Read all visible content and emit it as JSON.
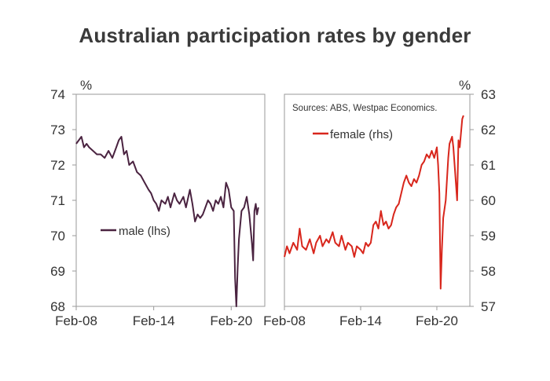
{
  "title": "Australian participation rates by gender",
  "chart_data": [
    {
      "type": "line",
      "panel": "left",
      "unit_label": "%",
      "y_axis_side": "left",
      "ylim": [
        68,
        74
      ],
      "yticks": [
        68,
        69,
        70,
        71,
        72,
        73,
        74
      ],
      "xlim": [
        2008.0,
        2022.6
      ],
      "xticks": [
        {
          "label": "Feb-08",
          "value": 2008.0
        },
        {
          "label": "Feb-14",
          "value": 2014.0
        },
        {
          "label": "Feb-20",
          "value": 2020.0
        }
      ],
      "legend_label": "male (lhs)",
      "legend_position": "middle-left",
      "series": [
        {
          "name": "male (lhs)",
          "color": "#4a2340",
          "points": [
            [
              2008.0,
              72.6
            ],
            [
              2008.2,
              72.7
            ],
            [
              2008.4,
              72.8
            ],
            [
              2008.6,
              72.5
            ],
            [
              2008.8,
              72.6
            ],
            [
              2009.0,
              72.5
            ],
            [
              2009.3,
              72.4
            ],
            [
              2009.6,
              72.3
            ],
            [
              2009.9,
              72.3
            ],
            [
              2010.2,
              72.2
            ],
            [
              2010.5,
              72.4
            ],
            [
              2010.8,
              72.2
            ],
            [
              2011.1,
              72.5
            ],
            [
              2011.3,
              72.7
            ],
            [
              2011.5,
              72.8
            ],
            [
              2011.7,
              72.3
            ],
            [
              2011.9,
              72.4
            ],
            [
              2012.1,
              72.0
            ],
            [
              2012.4,
              72.1
            ],
            [
              2012.7,
              71.8
            ],
            [
              2013.0,
              71.7
            ],
            [
              2013.3,
              71.5
            ],
            [
              2013.6,
              71.3
            ],
            [
              2013.8,
              71.2
            ],
            [
              2014.0,
              71.0
            ],
            [
              2014.2,
              70.9
            ],
            [
              2014.4,
              70.7
            ],
            [
              2014.6,
              71.0
            ],
            [
              2014.9,
              70.9
            ],
            [
              2015.1,
              71.1
            ],
            [
              2015.3,
              70.8
            ],
            [
              2015.6,
              71.2
            ],
            [
              2015.8,
              71.0
            ],
            [
              2016.0,
              70.9
            ],
            [
              2016.3,
              71.1
            ],
            [
              2016.5,
              70.8
            ],
            [
              2016.8,
              71.3
            ],
            [
              2017.0,
              70.9
            ],
            [
              2017.2,
              70.4
            ],
            [
              2017.4,
              70.6
            ],
            [
              2017.6,
              70.5
            ],
            [
              2017.8,
              70.6
            ],
            [
              2018.0,
              70.8
            ],
            [
              2018.2,
              71.0
            ],
            [
              2018.4,
              70.9
            ],
            [
              2018.6,
              70.7
            ],
            [
              2018.8,
              71.0
            ],
            [
              2019.0,
              70.9
            ],
            [
              2019.2,
              71.1
            ],
            [
              2019.4,
              70.8
            ],
            [
              2019.6,
              71.5
            ],
            [
              2019.8,
              71.3
            ],
            [
              2020.0,
              70.8
            ],
            [
              2020.2,
              70.7
            ],
            [
              2020.3,
              68.8
            ],
            [
              2020.4,
              68.0
            ],
            [
              2020.5,
              69.1
            ],
            [
              2020.6,
              69.9
            ],
            [
              2020.8,
              70.7
            ],
            [
              2021.0,
              70.8
            ],
            [
              2021.2,
              71.1
            ],
            [
              2021.4,
              70.6
            ],
            [
              2021.6,
              69.8
            ],
            [
              2021.7,
              69.3
            ],
            [
              2021.8,
              70.7
            ],
            [
              2021.9,
              70.9
            ],
            [
              2022.0,
              70.6
            ],
            [
              2022.1,
              70.8
            ]
          ]
        }
      ]
    },
    {
      "type": "line",
      "panel": "right",
      "unit_label": "%",
      "y_axis_side": "right",
      "ylim": [
        57,
        63
      ],
      "yticks": [
        57,
        58,
        59,
        60,
        61,
        62,
        63
      ],
      "xlim": [
        2008.0,
        2022.6
      ],
      "xticks": [
        {
          "label": "Feb-08",
          "value": 2008.0
        },
        {
          "label": "Feb-14",
          "value": 2014.0
        },
        {
          "label": "Feb-20",
          "value": 2020.0
        }
      ],
      "legend_label": "female (rhs)",
      "legend_position": "top-left",
      "source": "Sources: ABS, Westpac Economics.",
      "series": [
        {
          "name": "female (rhs)",
          "color": "#d8261c",
          "points": [
            [
              2008.0,
              58.4
            ],
            [
              2008.2,
              58.7
            ],
            [
              2008.4,
              58.5
            ],
            [
              2008.7,
              58.8
            ],
            [
              2009.0,
              58.6
            ],
            [
              2009.2,
              59.2
            ],
            [
              2009.4,
              58.7
            ],
            [
              2009.7,
              58.6
            ],
            [
              2010.0,
              58.9
            ],
            [
              2010.3,
              58.5
            ],
            [
              2010.5,
              58.8
            ],
            [
              2010.8,
              59.0
            ],
            [
              2011.0,
              58.7
            ],
            [
              2011.3,
              58.9
            ],
            [
              2011.5,
              58.8
            ],
            [
              2011.8,
              59.1
            ],
            [
              2012.0,
              58.8
            ],
            [
              2012.3,
              58.7
            ],
            [
              2012.5,
              59.0
            ],
            [
              2012.8,
              58.6
            ],
            [
              2013.0,
              58.8
            ],
            [
              2013.3,
              58.7
            ],
            [
              2013.5,
              58.4
            ],
            [
              2013.7,
              58.7
            ],
            [
              2014.0,
              58.6
            ],
            [
              2014.2,
              58.5
            ],
            [
              2014.4,
              58.8
            ],
            [
              2014.6,
              58.7
            ],
            [
              2014.8,
              58.8
            ],
            [
              2015.0,
              59.3
            ],
            [
              2015.2,
              59.4
            ],
            [
              2015.4,
              59.2
            ],
            [
              2015.6,
              59.7
            ],
            [
              2015.8,
              59.3
            ],
            [
              2016.0,
              59.4
            ],
            [
              2016.2,
              59.2
            ],
            [
              2016.4,
              59.3
            ],
            [
              2016.6,
              59.6
            ],
            [
              2016.8,
              59.8
            ],
            [
              2017.0,
              59.9
            ],
            [
              2017.2,
              60.2
            ],
            [
              2017.4,
              60.5
            ],
            [
              2017.6,
              60.7
            ],
            [
              2017.8,
              60.5
            ],
            [
              2018.0,
              60.4
            ],
            [
              2018.2,
              60.6
            ],
            [
              2018.4,
              60.5
            ],
            [
              2018.6,
              60.7
            ],
            [
              2018.8,
              61.0
            ],
            [
              2019.0,
              61.1
            ],
            [
              2019.2,
              61.3
            ],
            [
              2019.4,
              61.2
            ],
            [
              2019.6,
              61.4
            ],
            [
              2019.8,
              61.2
            ],
            [
              2020.0,
              61.5
            ],
            [
              2020.1,
              61.0
            ],
            [
              2020.2,
              60.2
            ],
            [
              2020.3,
              57.5
            ],
            [
              2020.4,
              58.6
            ],
            [
              2020.5,
              59.5
            ],
            [
              2020.7,
              60.0
            ],
            [
              2020.9,
              61.2
            ],
            [
              2021.0,
              61.6
            ],
            [
              2021.2,
              61.8
            ],
            [
              2021.3,
              61.5
            ],
            [
              2021.5,
              60.5
            ],
            [
              2021.6,
              60.0
            ],
            [
              2021.7,
              61.7
            ],
            [
              2021.8,
              61.5
            ],
            [
              2021.9,
              61.9
            ],
            [
              2022.0,
              62.3
            ],
            [
              2022.1,
              62.4
            ]
          ]
        }
      ]
    }
  ]
}
